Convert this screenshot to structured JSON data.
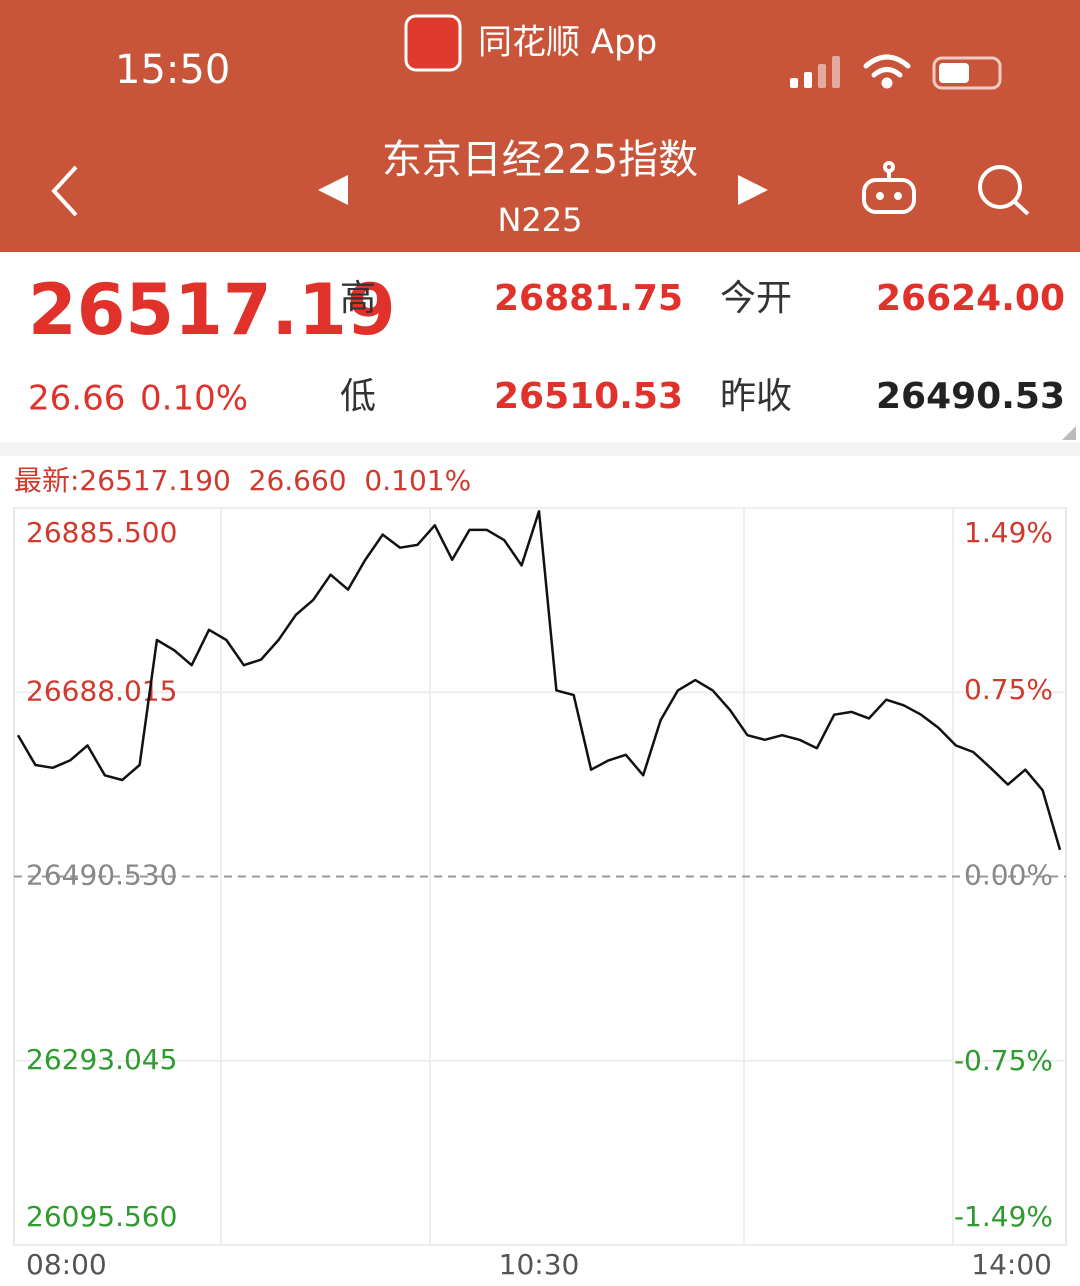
{
  "status_bar": {
    "time": "15:50",
    "app": "同花顺 App"
  },
  "header": {
    "title": "东京日经225指数",
    "code": "N225"
  },
  "quote": {
    "price": "26517.19",
    "change": "26.66",
    "change_pct": "0.10%",
    "high_label": "高",
    "high": "26881.75",
    "open_label": "今开",
    "open": "26624.00",
    "low_label": "低",
    "low": "26510.53",
    "prev_close_label": "昨收",
    "prev_close": "26490.53"
  },
  "chart_data": {
    "type": "line",
    "title": "最新:26517.190  26.660  0.101%",
    "categories": [
      "08:00",
      null,
      null,
      null,
      null,
      null,
      null,
      null,
      null,
      null,
      null,
      null,
      null,
      null,
      null,
      null,
      null,
      null,
      null,
      null,
      null,
      null,
      null,
      null,
      null,
      null,
      null,
      null,
      null,
      null,
      "10:30",
      null,
      null,
      null,
      null,
      null,
      null,
      null,
      null,
      null,
      null,
      null,
      null,
      null,
      null,
      null,
      null,
      null,
      null,
      null,
      null,
      null,
      null,
      null,
      null,
      null,
      null,
      null,
      null,
      null,
      "14:00"
    ],
    "values": [
      26642,
      26610,
      26607,
      26615,
      26631,
      26599,
      26594,
      26610,
      26744,
      26733,
      26717,
      26755,
      26744,
      26717,
      26723,
      26744,
      26771,
      26787,
      26814,
      26798,
      26830,
      26857,
      26843,
      26846,
      26867,
      26830,
      26862,
      26862,
      26851,
      26824,
      26882,
      26690,
      26685,
      26605,
      26615,
      26621,
      26599,
      26658,
      26690,
      26701,
      26690,
      26669,
      26642,
      26637,
      26642,
      26637,
      26628,
      26664,
      26667,
      26660,
      26680,
      26674,
      26664,
      26650,
      26631,
      26624,
      26607,
      26589,
      26605,
      26583,
      26519
    ],
    "color": "#111111",
    "ylim": [
      26095.56,
      26885.5
    ],
    "yticks": [
      {
        "value": 26095.56,
        "label": "26095.560"
      },
      26293.045,
      {
        "value": 26490.53,
        "label": "26490.530"
      },
      26688.015,
      {
        "value": 26885.5,
        "label": "26885.500"
      }
    ],
    "y2lim": [
      -1.49,
      1.49
    ],
    "y2ticks": [
      {
        "value": -1.49,
        "label": "-1.49%"
      },
      {
        "value": -0.75,
        "label": "-0.75%"
      },
      {
        "value": 0,
        "label": "0.00%"
      },
      {
        "value": 0.75,
        "label": "0.75%"
      },
      {
        "value": 1.49,
        "label": "1.49%"
      }
    ],
    "grid": true
  }
}
